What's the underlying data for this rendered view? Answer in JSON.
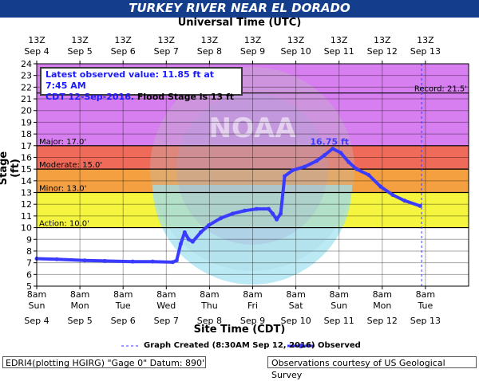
{
  "header": {
    "title": "TURKEY RIVER NEAR EL DORADO",
    "top_axis_label": "Universal Time (UTC)",
    "bottom_axis_label": "Site Time (CDT)",
    "y_axis_label": "Stage (ft)"
  },
  "info_box": {
    "line1": "Latest observed value: 11.85 ft at 7:45 AM",
    "line2_blue": "CDT 12-Sep-2016.",
    "line2_black": " Flood Stage is 13 ft"
  },
  "legend": {
    "graph_created": "Graph Created (8:30AM Sep 12, 2016)",
    "observed": "Observed"
  },
  "footer": {
    "left": "EDRI4(plotting HGIRG) \"Gage 0\" Datum: 890'",
    "right": "Observations courtesy of US Geological Survey"
  },
  "watermark": {
    "text": "NOAA"
  },
  "colors": {
    "title_band": "#143e8c",
    "major": "#e57ae8",
    "major_dark": "#e84a4a",
    "moderate": "#f58a3c",
    "minor": "#f5f540",
    "observed": "#3b3bff"
  },
  "chart_data": {
    "type": "line",
    "ylim": [
      5,
      24
    ],
    "yticks": [
      5,
      6,
      7,
      8,
      9,
      10,
      11,
      12,
      13,
      14,
      15,
      16,
      17,
      18,
      19,
      20,
      21,
      22,
      23,
      24
    ],
    "xlim": [
      "2016-09-04 08:00",
      "2016-09-13 08:00"
    ],
    "top_ticks": [
      {
        "line1": "13Z",
        "line2": "Sep 4"
      },
      {
        "line1": "13Z",
        "line2": "Sep 5"
      },
      {
        "line1": "13Z",
        "line2": "Sep 6"
      },
      {
        "line1": "13Z",
        "line2": "Sep 7"
      },
      {
        "line1": "13Z",
        "line2": "Sep 8"
      },
      {
        "line1": "13Z",
        "line2": "Sep 9"
      },
      {
        "line1": "13Z",
        "line2": "Sep 10"
      },
      {
        "line1": "13Z",
        "line2": "Sep 11"
      },
      {
        "line1": "13Z",
        "line2": "Sep 12"
      },
      {
        "line1": "13Z",
        "line2": "Sep 13"
      }
    ],
    "bottom_ticks": [
      {
        "line1": "8am",
        "line2": "Sun",
        "line3": "Sep 4"
      },
      {
        "line1": "8am",
        "line2": "Mon",
        "line3": "Sep 5"
      },
      {
        "line1": "8am",
        "line2": "Tue",
        "line3": "Sep 6"
      },
      {
        "line1": "8am",
        "line2": "Wed",
        "line3": "Sep 7"
      },
      {
        "line1": "8am",
        "line2": "Thu",
        "line3": "Sep 8"
      },
      {
        "line1": "8am",
        "line2": "Fri",
        "line3": "Sep 9"
      },
      {
        "line1": "8am",
        "line2": "Sat",
        "line3": "Sep 10"
      },
      {
        "line1": "8am",
        "line2": "Sun",
        "line3": "Sep 11"
      },
      {
        "line1": "8am",
        "line2": "Mon",
        "line3": "Sep 12"
      },
      {
        "line1": "8am",
        "line2": "Tue",
        "line3": "Sep 13"
      }
    ],
    "flood_categories": [
      {
        "name": "Action",
        "label": "Action: 10.0'",
        "from": 10,
        "to": 13,
        "color": "#f5f540"
      },
      {
        "name": "Minor",
        "label": "Minor: 13.0'",
        "from": 13,
        "to": 15,
        "color": "#f5a040"
      },
      {
        "name": "Moderate",
        "label": "Moderate: 15.0'",
        "from": 15,
        "to": 17,
        "color": "#f06a5a"
      },
      {
        "name": "Major",
        "label": "Major: 17.0'",
        "from": 17,
        "to": 24,
        "color": "#d77ef0"
      }
    ],
    "record": {
      "label": "Record: 21.5'",
      "value": 21.5
    },
    "peak_label": {
      "text": "16.75 ft",
      "x": "2016-09-10 12:00",
      "y": 16.75
    },
    "graph_created_x": "2016-09-12 08:30",
    "series": [
      {
        "name": "Observed",
        "x": [
          "2016-09-04 08:00",
          "2016-09-04 18:00",
          "2016-09-05 08:00",
          "2016-09-05 18:00",
          "2016-09-06 08:00",
          "2016-09-06 18:00",
          "2016-09-07 04:00",
          "2016-09-07 06:00",
          "2016-09-07 08:00",
          "2016-09-07 10:00",
          "2016-09-07 12:00",
          "2016-09-07 14:00",
          "2016-09-07 18:00",
          "2016-09-07 22:00",
          "2016-09-08 04:00",
          "2016-09-08 10:00",
          "2016-09-08 16:00",
          "2016-09-08 22:00",
          "2016-09-09 04:00",
          "2016-09-09 06:00",
          "2016-09-09 08:00",
          "2016-09-09 10:00",
          "2016-09-09 12:00",
          "2016-09-09 16:00",
          "2016-09-09 22:00",
          "2016-09-10 04:00",
          "2016-09-10 08:00",
          "2016-09-10 12:00",
          "2016-09-10 16:00",
          "2016-09-10 20:00",
          "2016-09-11 00:00",
          "2016-09-11 06:00",
          "2016-09-11 12:00",
          "2016-09-11 18:00",
          "2016-09-12 00:00",
          "2016-09-12 07:45"
        ],
        "y": [
          7.35,
          7.3,
          7.2,
          7.15,
          7.1,
          7.1,
          7.05,
          7.2,
          8.6,
          9.6,
          9.0,
          8.8,
          9.6,
          10.2,
          10.8,
          11.2,
          11.45,
          11.6,
          11.6,
          11.2,
          10.7,
          11.2,
          14.4,
          14.9,
          15.2,
          15.7,
          16.2,
          16.75,
          16.4,
          15.6,
          15.0,
          14.5,
          13.5,
          12.8,
          12.3,
          11.85
        ]
      }
    ]
  }
}
